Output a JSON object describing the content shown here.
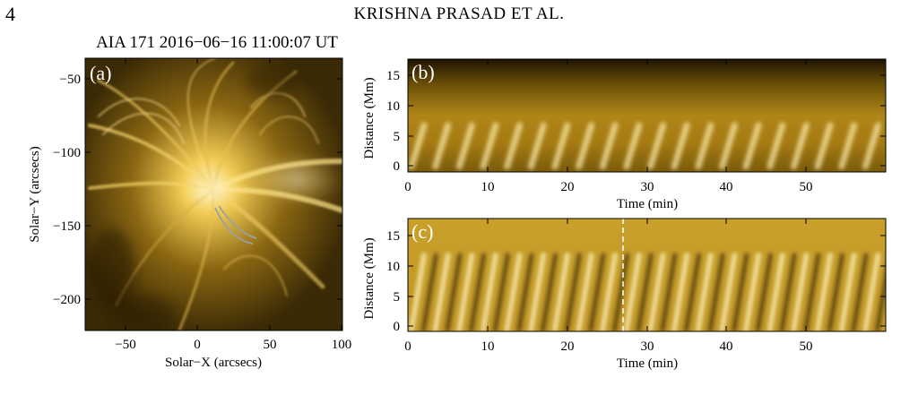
{
  "header": {
    "page_number": "4",
    "running_head": "KRISHNA PRASAD ET AL."
  },
  "colors": {
    "aia171_dark": "#2a1c00",
    "aia171_mid": "#8c6a0c",
    "aia171_bright": "#fff2b0",
    "loop_trace": "#9aa0a8"
  },
  "figure": {
    "panel_a": {
      "title": "AIA 171 2016−06−16 11:00:07 UT",
      "label": "(a)",
      "xlabel": "Solar−X (arcsecs)",
      "ylabel": "Solar−Y (arcsecs)",
      "xticks": [
        "−50",
        "0",
        "50",
        "100"
      ],
      "yticks": [
        "−50",
        "−100",
        "−150",
        "−200"
      ]
    },
    "panel_b": {
      "label": "(b)",
      "xlabel": "Time (min)",
      "ylabel": "Distance (Mm)",
      "xticks": [
        "0",
        "10",
        "20",
        "30",
        "40",
        "50"
      ],
      "yticks": [
        "0",
        "5",
        "10",
        "15"
      ]
    },
    "panel_c": {
      "label": "(c)",
      "xlabel": "Time (min)",
      "ylabel": "Distance (Mm)",
      "xticks": [
        "0",
        "10",
        "20",
        "30",
        "40",
        "50"
      ],
      "yticks": [
        "0",
        "5",
        "10",
        "15"
      ]
    }
  },
  "chart_data": [
    {
      "type": "heatmap",
      "panel": "a",
      "title": "AIA 171 2016−06−16 11:00:07 UT",
      "xlabel": "Solar−X (arcsecs)",
      "ylabel": "Solar−Y (arcsecs)",
      "xlim": [
        -80,
        100
      ],
      "ylim": [
        -220,
        -35
      ],
      "xticks": [
        -50,
        0,
        50,
        100
      ],
      "yticks": [
        -50,
        -100,
        -150,
        -200
      ],
      "colormap": "SDO/AIA 171",
      "overlay": "grey outline of the traced loop from about (10, -137) to (30, -162)"
    },
    {
      "type": "heatmap",
      "panel": "b",
      "xlabel": "Time (min)",
      "ylabel": "Distance (Mm)",
      "xlim": [
        0,
        60
      ],
      "ylim": [
        -1,
        17.5
      ],
      "xticks": [
        0,
        10,
        20,
        30,
        40,
        50
      ],
      "yticks": [
        0,
        5,
        10,
        15
      ],
      "colormap": "SDO/AIA 171",
      "feature": "periodic bright inclined ridges, roughly every 3 min"
    },
    {
      "type": "heatmap",
      "panel": "c",
      "xlabel": "Time (min)",
      "ylabel": "Distance (Mm)",
      "xlim": [
        0,
        60
      ],
      "ylim": [
        -1,
        17.5
      ],
      "xticks": [
        0,
        10,
        20,
        30,
        40,
        50
      ],
      "yticks": [
        0,
        5,
        10,
        15
      ],
      "colormap": "SDO/AIA 171",
      "feature": "filtered map with alternating bright/dark inclined ridges",
      "marker": {
        "style": "dashed vertical line",
        "time_min": 27
      }
    }
  ]
}
